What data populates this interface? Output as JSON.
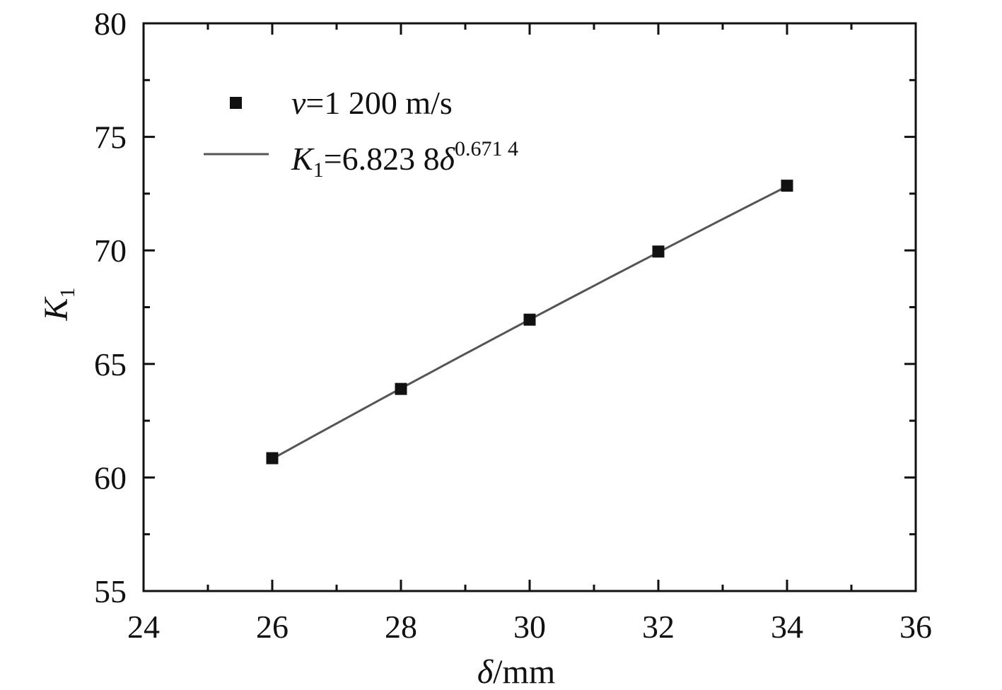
{
  "chart_data": {
    "type": "scatter",
    "x": [
      26,
      28,
      30,
      32,
      34
    ],
    "xlim": [
      24,
      36
    ],
    "ylim": [
      55,
      80
    ],
    "xticks": [
      24,
      26,
      28,
      30,
      32,
      34,
      36
    ],
    "yticks": [
      55,
      60,
      65,
      70,
      75,
      80
    ],
    "xlabel": {
      "symbol": "δ",
      "unit": "/mm"
    },
    "ylabel": {
      "symbol": "K",
      "subscript": "1"
    },
    "series": [
      {
        "name": "v=1 200 m/s",
        "kind": "scatter",
        "marker": "square",
        "color": "#111111",
        "values": [
          60.85,
          63.9,
          66.95,
          69.95,
          72.85
        ]
      },
      {
        "name": "K1=6.823 8δ^0.671 4",
        "kind": "fit-line",
        "color": "#555555",
        "coefficient": 6.8238,
        "exponent": 0.6714,
        "x_range": [
          26,
          34
        ]
      }
    ],
    "legend": {
      "position": "top-left",
      "scatter": {
        "var": "v",
        "rest": "=1 200 m/s"
      },
      "fit": {
        "var": "K",
        "sub": "1",
        "mid": "=6.823 8",
        "delta": "δ",
        "sup": "0.671 4"
      }
    },
    "grid": false
  }
}
